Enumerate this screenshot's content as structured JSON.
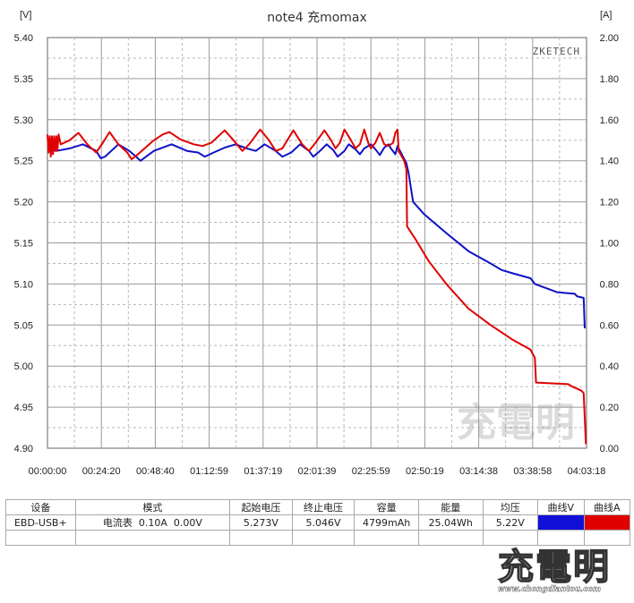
{
  "chart_data": {
    "type": "line",
    "title": "note4 充momax",
    "watermark": "ZKETECH",
    "y_left_label": "[V]",
    "y_right_label": "[A]",
    "ylim_left": [
      4.9,
      5.4
    ],
    "ylim_right": [
      0.0,
      2.0
    ],
    "y_left_ticks": [
      "5.40",
      "5.35",
      "5.30",
      "5.25",
      "5.20",
      "5.15",
      "5.10",
      "5.05",
      "5.00",
      "4.95",
      "4.90"
    ],
    "y_right_ticks": [
      "2.00",
      "1.80",
      "1.60",
      "1.40",
      "1.20",
      "1.00",
      "0.80",
      "0.60",
      "0.40",
      "0.20",
      "0.00"
    ],
    "x_ticks": [
      "00:00:00",
      "00:24:20",
      "00:48:40",
      "01:12:59",
      "01:37:19",
      "02:01:39",
      "02:25:59",
      "02:50:19",
      "03:14:38",
      "03:38:58",
      "04:03:18"
    ],
    "xlim_min": [
      0,
      243.3
    ],
    "grid": true,
    "series": [
      {
        "axis": "left",
        "color": "#1010c8",
        "points": [
          [
            0,
            5.265
          ],
          [
            4,
            5.262
          ],
          [
            10,
            5.265
          ],
          [
            16,
            5.27
          ],
          [
            22,
            5.262
          ],
          [
            24,
            5.253
          ],
          [
            26,
            5.255
          ],
          [
            32,
            5.27
          ],
          [
            37,
            5.262
          ],
          [
            40,
            5.255
          ],
          [
            42,
            5.25
          ],
          [
            48,
            5.262
          ],
          [
            56,
            5.27
          ],
          [
            63,
            5.262
          ],
          [
            68,
            5.26
          ],
          [
            71,
            5.255
          ],
          [
            75,
            5.26
          ],
          [
            80,
            5.266
          ],
          [
            85,
            5.27
          ],
          [
            90,
            5.265
          ],
          [
            94,
            5.262
          ],
          [
            98,
            5.27
          ],
          [
            103,
            5.262
          ],
          [
            106,
            5.255
          ],
          [
            110,
            5.26
          ],
          [
            114,
            5.27
          ],
          [
            118,
            5.262
          ],
          [
            120,
            5.255
          ],
          [
            123,
            5.262
          ],
          [
            126,
            5.27
          ],
          [
            129,
            5.263
          ],
          [
            131,
            5.255
          ],
          [
            134,
            5.262
          ],
          [
            136,
            5.27
          ],
          [
            139,
            5.264
          ],
          [
            141,
            5.258
          ],
          [
            143,
            5.265
          ],
          [
            146,
            5.27
          ],
          [
            148,
            5.264
          ],
          [
            150,
            5.257
          ],
          [
            152,
            5.266
          ],
          [
            154,
            5.27
          ],
          [
            155,
            5.265
          ],
          [
            157,
            5.258
          ],
          [
            158,
            5.268
          ],
          [
            162,
            5.247
          ],
          [
            163,
            5.235
          ],
          [
            165,
            5.2
          ],
          [
            170,
            5.185
          ],
          [
            180,
            5.162
          ],
          [
            190,
            5.14
          ],
          [
            200,
            5.125
          ],
          [
            205,
            5.117
          ],
          [
            210,
            5.113
          ],
          [
            218,
            5.107
          ],
          [
            220,
            5.1
          ],
          [
            230,
            5.09
          ],
          [
            238,
            5.088
          ],
          [
            239,
            5.085
          ],
          [
            242,
            5.083
          ],
          [
            242.5,
            5.046
          ]
        ]
      },
      {
        "axis": "left",
        "color": "#e00000",
        "points": [
          [
            0,
            5.282
          ],
          [
            0.5,
            5.26
          ],
          [
            1,
            5.28
          ],
          [
            1.5,
            5.255
          ],
          [
            2,
            5.28
          ],
          [
            2.5,
            5.258
          ],
          [
            3,
            5.28
          ],
          [
            3.5,
            5.262
          ],
          [
            4,
            5.28
          ],
          [
            4.5,
            5.262
          ],
          [
            5,
            5.282
          ],
          [
            6,
            5.27
          ],
          [
            10,
            5.275
          ],
          [
            14,
            5.284
          ],
          [
            18,
            5.27
          ],
          [
            22,
            5.26
          ],
          [
            25,
            5.272
          ],
          [
            28,
            5.285
          ],
          [
            32,
            5.27
          ],
          [
            36,
            5.26
          ],
          [
            38,
            5.252
          ],
          [
            40,
            5.256
          ],
          [
            48,
            5.275
          ],
          [
            52,
            5.282
          ],
          [
            55,
            5.285
          ],
          [
            60,
            5.276
          ],
          [
            66,
            5.27
          ],
          [
            70,
            5.268
          ],
          [
            74,
            5.272
          ],
          [
            80,
            5.287
          ],
          [
            84,
            5.275
          ],
          [
            88,
            5.262
          ],
          [
            91,
            5.27
          ],
          [
            96,
            5.288
          ],
          [
            100,
            5.275
          ],
          [
            103,
            5.262
          ],
          [
            106,
            5.265
          ],
          [
            111,
            5.287
          ],
          [
            115,
            5.27
          ],
          [
            118,
            5.262
          ],
          [
            121,
            5.272
          ],
          [
            125,
            5.287
          ],
          [
            128,
            5.275
          ],
          [
            130,
            5.265
          ],
          [
            132,
            5.272
          ],
          [
            134,
            5.288
          ],
          [
            137,
            5.275
          ],
          [
            139,
            5.265
          ],
          [
            141,
            5.27
          ],
          [
            143,
            5.288
          ],
          [
            145,
            5.27
          ],
          [
            146,
            5.265
          ],
          [
            148,
            5.272
          ],
          [
            150,
            5.284
          ],
          [
            152,
            5.27
          ],
          [
            154,
            5.268
          ],
          [
            156,
            5.272
          ],
          [
            157,
            5.284
          ],
          [
            158,
            5.288
          ],
          [
            158.5,
            5.262
          ],
          [
            161,
            5.25
          ],
          [
            162,
            5.24
          ],
          [
            162.3,
            5.17
          ],
          [
            166,
            5.155
          ],
          [
            172,
            5.128
          ],
          [
            180,
            5.1
          ],
          [
            190,
            5.07
          ],
          [
            200,
            5.05
          ],
          [
            210,
            5.032
          ],
          [
            218,
            5.02
          ],
          [
            220,
            5.01
          ],
          [
            220.5,
            4.98
          ],
          [
            235,
            4.978
          ],
          [
            237,
            4.975
          ],
          [
            241,
            4.97
          ],
          [
            242,
            4.967
          ],
          [
            243,
            4.905
          ]
        ]
      }
    ]
  },
  "table": {
    "headers": [
      "设备",
      "模式",
      "起始电压",
      "终止电压",
      "容量",
      "能量",
      "均压",
      "曲线V",
      "曲线A"
    ],
    "row": {
      "device": "EBD-USB+",
      "mode": "电流表  0.10A  0.00V",
      "start_voltage": "5.273V",
      "end_voltage": "5.046V",
      "capacity": "4799mAh",
      "energy": "25.04Wh",
      "avg_voltage": "5.22V"
    },
    "swatch_v_color": "#1010d8",
    "swatch_a_color": "#e00000"
  },
  "logo": {
    "text": "充電明",
    "sub": "www.chongdiantou.com"
  }
}
